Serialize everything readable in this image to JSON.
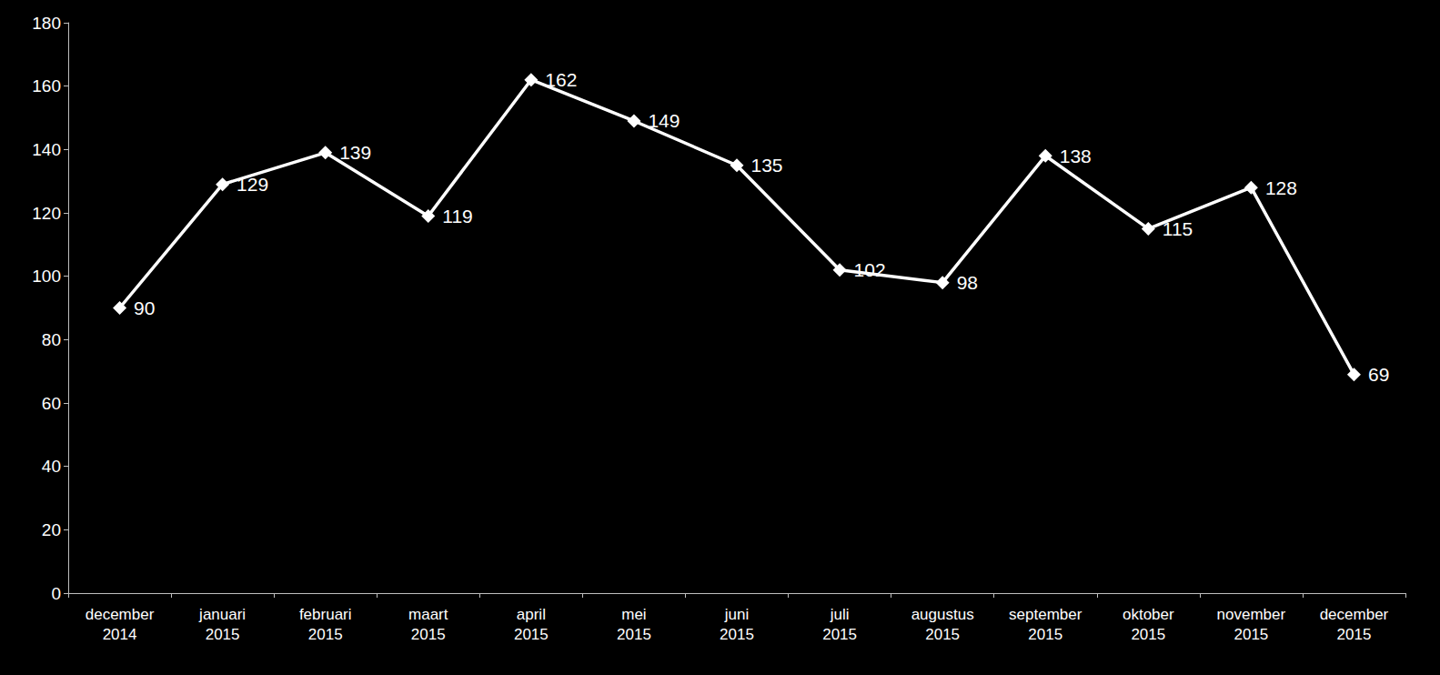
{
  "chart_data": {
    "type": "line",
    "categories": [
      "december 2014",
      "januari 2015",
      "februari 2015",
      "maart 2015",
      "april 2015",
      "mei 2015",
      "juni 2015",
      "juli 2015",
      "augustus 2015",
      "september 2015",
      "oktober 2015",
      "november 2015",
      "december 2015"
    ],
    "values": [
      90,
      129,
      139,
      119,
      162,
      149,
      135,
      102,
      98,
      138,
      115,
      128,
      69
    ],
    "color": "#ffffff",
    "marker": "diamond",
    "line_style": "solid",
    "ylim": [
      0,
      180
    ],
    "yticks": [
      0,
      20,
      40,
      60,
      80,
      100,
      120,
      140,
      160,
      180
    ],
    "grid": false,
    "data_labels": true
  }
}
